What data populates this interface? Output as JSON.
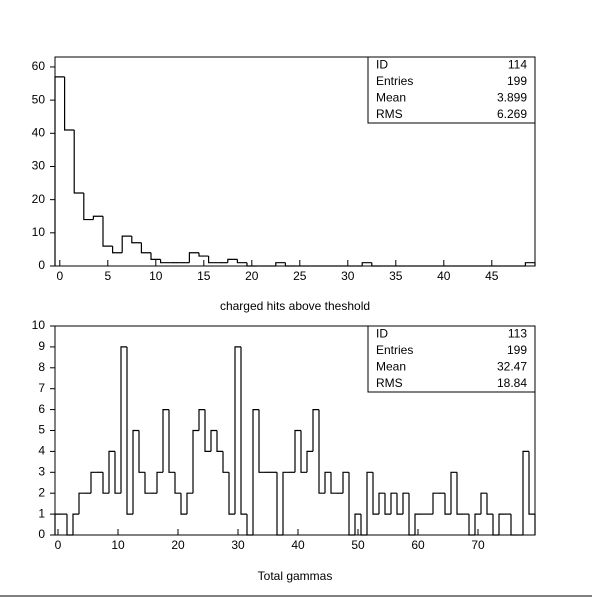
{
  "chart_data": [
    {
      "type": "histogram",
      "xlabel": "charged hits above theshold",
      "bins": [
        -0.5,
        0.5,
        1.5,
        2.5,
        3.5,
        4.5,
        5.5,
        6.5,
        7.5,
        8.5,
        9.5,
        10.5,
        11.5,
        12.5,
        13.5,
        14.5,
        15.5,
        16.5,
        17.5,
        18.5,
        19.5,
        20.5,
        21.5,
        22.5,
        23.5,
        24.5,
        25.5,
        26.5,
        27.5,
        28.5,
        29.5,
        30.5,
        31.5,
        32.5,
        33.5,
        34.5,
        35.5,
        36.5,
        37.5,
        38.5,
        39.5,
        40.5,
        41.5,
        42.5,
        43.5,
        44.5,
        45.5,
        46.5,
        47.5,
        48.5,
        49.5
      ],
      "values": [
        57,
        41,
        22,
        14,
        15,
        6,
        4,
        9,
        7,
        4,
        2,
        1,
        1,
        1,
        4,
        3,
        1,
        1,
        2,
        1,
        0,
        0,
        0,
        1,
        0,
        0,
        0,
        0,
        0,
        0,
        0,
        0,
        1,
        0,
        0,
        0,
        0,
        0,
        0,
        0,
        0,
        0,
        0,
        0,
        0,
        0,
        0,
        0,
        0,
        1
      ],
      "color": "#000000",
      "xlim": [
        -0.5,
        49.5
      ],
      "xticks": [
        0,
        5,
        10,
        15,
        20,
        25,
        30,
        35,
        40,
        45
      ],
      "ylim": [
        0,
        63
      ],
      "yticks": [
        0,
        10,
        20,
        30,
        40,
        50,
        60
      ],
      "stats": [
        {
          "label": "ID",
          "value": 114
        },
        {
          "label": "Entries",
          "value": 199
        },
        {
          "label": "Mean",
          "value": 3.899
        },
        {
          "label": "RMS",
          "value": 6.269
        }
      ]
    },
    {
      "type": "histogram",
      "xlabel": "Total gammas",
      "bins": [
        -0.5,
        0.5,
        1.5,
        2.5,
        3.5,
        4.5,
        5.5,
        6.5,
        7.5,
        8.5,
        9.5,
        10.5,
        11.5,
        12.5,
        13.5,
        14.5,
        15.5,
        16.5,
        17.5,
        18.5,
        19.5,
        20.5,
        21.5,
        22.5,
        23.5,
        24.5,
        25.5,
        26.5,
        27.5,
        28.5,
        29.5,
        30.5,
        31.5,
        32.5,
        33.5,
        34.5,
        35.5,
        36.5,
        37.5,
        38.5,
        39.5,
        40.5,
        41.5,
        42.5,
        43.5,
        44.5,
        45.5,
        46.5,
        47.5,
        48.5,
        49.5,
        50.5,
        51.5,
        52.5,
        53.5,
        54.5,
        55.5,
        56.5,
        57.5,
        58.5,
        59.5,
        60.5,
        61.5,
        62.5,
        63.5,
        64.5,
        65.5,
        66.5,
        67.5,
        68.5,
        69.5,
        70.5,
        71.5,
        72.5,
        73.5,
        74.5,
        75.5,
        76.5,
        77.5,
        78.5,
        79.5
      ],
      "values": [
        1,
        1,
        0,
        1,
        2,
        2,
        3,
        3,
        2,
        4,
        2,
        9,
        1,
        5,
        3,
        2,
        2,
        3,
        6,
        3,
        2,
        1,
        2,
        5,
        6,
        4,
        5,
        4,
        3,
        1,
        9,
        1,
        0,
        6,
        3,
        3,
        3,
        0,
        3,
        3,
        5,
        3,
        4,
        6,
        2,
        3,
        2,
        2,
        3,
        0,
        1,
        0,
        3,
        1,
        2,
        1,
        2,
        1,
        2,
        0,
        1,
        1,
        1,
        2,
        2,
        1,
        3,
        1,
        1,
        0,
        1,
        2,
        1,
        0,
        1,
        1,
        0,
        0,
        4,
        1
      ],
      "color": "#000000",
      "xlim": [
        -0.5,
        79.5
      ],
      "xticks": [
        0,
        10,
        20,
        30,
        40,
        50,
        60,
        70
      ],
      "ylim": [
        0,
        10
      ],
      "yticks": [
        0,
        1,
        2,
        3,
        4,
        5,
        6,
        7,
        8,
        9,
        10
      ],
      "stats": [
        {
          "label": "ID",
          "value": 113
        },
        {
          "label": "Entries",
          "value": 199
        },
        {
          "label": "Mean",
          "value": 32.47
        },
        {
          "label": "RMS",
          "value": 18.84
        }
      ]
    }
  ]
}
